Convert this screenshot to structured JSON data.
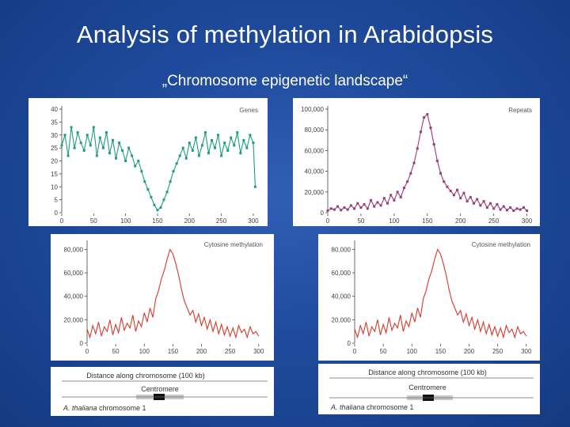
{
  "slide": {
    "title": "Analysis of methylation in Arabidopsis",
    "subtitle": "„Chromosome epigenetic landscape“"
  },
  "schematic": {
    "distance_label": "Distance along chromosome (100 kb)",
    "centromere_label": "Centromere",
    "chromosome_label_italic": "A. thaliana",
    "chromosome_label_rest": " chromosome 1"
  },
  "colors": {
    "genes": "#1e9e7e",
    "repeats": "#9b3b78",
    "methylation": "#d8392b"
  },
  "chart_data": [
    {
      "id": "genes",
      "type": "line",
      "title": "Genes",
      "xlabel": "",
      "ylabel": "",
      "xlim": [
        0,
        310
      ],
      "ylim": [
        0,
        40
      ],
      "xticks": [
        "0",
        "50",
        "100",
        "150",
        "200",
        "250",
        "300"
      ],
      "yticks": [
        "0",
        "5",
        "10",
        "15",
        "20",
        "25",
        "30",
        "35",
        "40"
      ],
      "x": [
        0,
        5,
        10,
        15,
        20,
        25,
        30,
        35,
        40,
        45,
        50,
        55,
        60,
        65,
        70,
        75,
        80,
        85,
        90,
        95,
        100,
        105,
        110,
        115,
        120,
        125,
        130,
        135,
        140,
        145,
        150,
        155,
        160,
        165,
        170,
        175,
        180,
        185,
        190,
        195,
        200,
        205,
        210,
        215,
        220,
        225,
        230,
        235,
        240,
        245,
        250,
        255,
        260,
        265,
        270,
        275,
        280,
        285,
        290,
        295,
        300,
        303
      ],
      "values": [
        26,
        30,
        22,
        33,
        25,
        31,
        27,
        24,
        30,
        26,
        33,
        22,
        29,
        25,
        31,
        23,
        28,
        21,
        27,
        24,
        20,
        25,
        22,
        18,
        20,
        16,
        12,
        9,
        6,
        3,
        1,
        2,
        5,
        8,
        12,
        16,
        19,
        22,
        25,
        21,
        27,
        24,
        29,
        22,
        26,
        31,
        23,
        28,
        25,
        30,
        22,
        27,
        24,
        29,
        26,
        31,
        23,
        28,
        25,
        30,
        27,
        10
      ]
    },
    {
      "id": "repeats",
      "type": "line",
      "title": "Repeats",
      "xlabel": "",
      "ylabel": "",
      "xlim": [
        0,
        310
      ],
      "ylim": [
        0,
        100000
      ],
      "xticks": [
        "0",
        "50",
        "100",
        "150",
        "200",
        "250",
        "300"
      ],
      "yticks": [
        "0",
        "20,000",
        "40,000",
        "60,000",
        "80,000",
        "100,000"
      ],
      "x": [
        0,
        5,
        10,
        15,
        20,
        25,
        30,
        35,
        40,
        45,
        50,
        55,
        60,
        65,
        70,
        75,
        80,
        85,
        90,
        95,
        100,
        105,
        110,
        115,
        120,
        125,
        130,
        135,
        140,
        145,
        150,
        155,
        160,
        165,
        170,
        175,
        180,
        185,
        190,
        195,
        200,
        205,
        210,
        215,
        220,
        225,
        230,
        235,
        240,
        245,
        250,
        255,
        260,
        265,
        270,
        275,
        280,
        285,
        290,
        295,
        300
      ],
      "values": [
        2000,
        4000,
        3000,
        6000,
        2500,
        5000,
        3000,
        7000,
        4000,
        9000,
        5000,
        8000,
        4000,
        12000,
        6000,
        10000,
        7000,
        14000,
        9000,
        17000,
        12000,
        20000,
        15000,
        24000,
        30000,
        38000,
        48000,
        62000,
        78000,
        92000,
        95000,
        82000,
        66000,
        50000,
        38000,
        30000,
        25000,
        21000,
        17000,
        22000,
        14000,
        19000,
        11000,
        15000,
        9000,
        13000,
        7000,
        11000,
        5000,
        9000,
        4000,
        8000,
        3000,
        6000,
        2500,
        5000,
        2000,
        4000,
        3000,
        5000,
        2000
      ]
    },
    {
      "id": "methylation-left",
      "type": "line",
      "title": "Cytosine methylation",
      "xlabel": "",
      "ylabel": "",
      "xlim": [
        0,
        310
      ],
      "ylim": [
        0,
        85000
      ],
      "xticks": [
        "0",
        "50",
        "100",
        "150",
        "200",
        "250",
        "300"
      ],
      "yticks": [
        "0",
        "20,000",
        "40,000",
        "60,000",
        "80,000"
      ],
      "x": [
        0,
        5,
        10,
        15,
        20,
        25,
        30,
        35,
        40,
        45,
        50,
        55,
        60,
        65,
        70,
        75,
        80,
        85,
        90,
        95,
        100,
        105,
        110,
        115,
        120,
        125,
        130,
        135,
        140,
        145,
        150,
        155,
        160,
        165,
        170,
        175,
        180,
        185,
        190,
        195,
        200,
        205,
        210,
        215,
        220,
        225,
        230,
        235,
        240,
        245,
        250,
        255,
        260,
        265,
        270,
        275,
        280,
        285,
        290,
        295,
        300
      ],
      "values": [
        12000,
        5000,
        15000,
        8000,
        18000,
        6000,
        14000,
        10000,
        20000,
        7000,
        16000,
        9000,
        22000,
        11000,
        17000,
        13000,
        24000,
        10000,
        19000,
        14000,
        26000,
        18000,
        30000,
        22000,
        38000,
        45000,
        55000,
        62000,
        72000,
        80000,
        76000,
        68000,
        58000,
        46000,
        36000,
        30000,
        24000,
        28000,
        18000,
        25000,
        15000,
        22000,
        12000,
        20000,
        10000,
        18000,
        8000,
        16000,
        7000,
        14000,
        6000,
        13000,
        5000,
        15000,
        9000,
        12000,
        5000,
        14000,
        8000,
        10000,
        6000
      ]
    },
    {
      "id": "methylation-right",
      "type": "line",
      "title": "Cytosine methylation",
      "xlabel": "",
      "ylabel": "",
      "xlim": [
        0,
        310
      ],
      "ylim": [
        0,
        85000
      ],
      "xticks": [
        "0",
        "50",
        "100",
        "150",
        "200",
        "250",
        "300"
      ],
      "yticks": [
        "0",
        "20,000",
        "40,000",
        "60,000",
        "80,000"
      ],
      "x": [
        0,
        5,
        10,
        15,
        20,
        25,
        30,
        35,
        40,
        45,
        50,
        55,
        60,
        65,
        70,
        75,
        80,
        85,
        90,
        95,
        100,
        105,
        110,
        115,
        120,
        125,
        130,
        135,
        140,
        145,
        150,
        155,
        160,
        165,
        170,
        175,
        180,
        185,
        190,
        195,
        200,
        205,
        210,
        215,
        220,
        225,
        230,
        235,
        240,
        245,
        250,
        255,
        260,
        265,
        270,
        275,
        280,
        285,
        290,
        295,
        300
      ],
      "values": [
        12000,
        5000,
        15000,
        8000,
        18000,
        6000,
        14000,
        10000,
        20000,
        7000,
        16000,
        9000,
        22000,
        11000,
        17000,
        13000,
        24000,
        10000,
        19000,
        14000,
        26000,
        18000,
        30000,
        22000,
        38000,
        45000,
        55000,
        62000,
        72000,
        80000,
        76000,
        68000,
        58000,
        46000,
        36000,
        30000,
        24000,
        28000,
        18000,
        25000,
        15000,
        22000,
        12000,
        20000,
        10000,
        18000,
        8000,
        16000,
        7000,
        14000,
        6000,
        13000,
        5000,
        15000,
        9000,
        12000,
        5000,
        14000,
        8000,
        10000,
        6000
      ]
    }
  ]
}
